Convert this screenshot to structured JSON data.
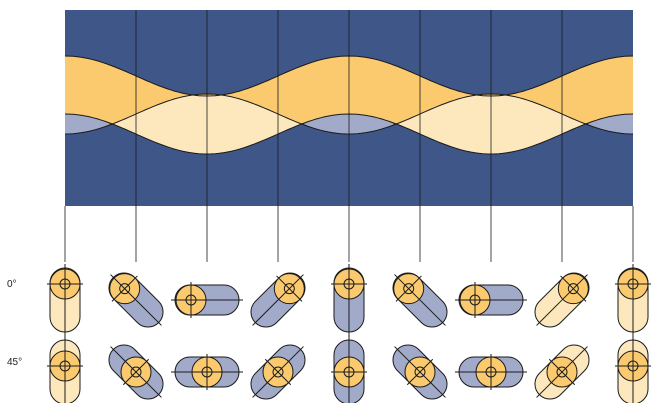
{
  "rows": [
    {
      "label": "0°",
      "phase_deg": 0
    },
    {
      "label": "45°",
      "phase_deg": 45
    }
  ],
  "columns": 9,
  "colors": {
    "dark_blue": "#3f5688",
    "orange": "#fbca6f",
    "cream": "#fde8bd",
    "lavender": "#a2aac9",
    "line": "#1a1a1a"
  }
}
